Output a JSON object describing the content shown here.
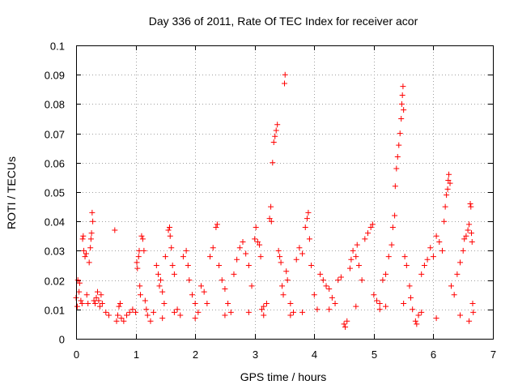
{
  "chart_data": {
    "type": "scatter",
    "title": "Day 336 of 2011, Rate Of TEC Index for receiver acor",
    "xlabel": "GPS time / hours",
    "ylabel": "ROTI / TECUs",
    "xlim": [
      0,
      7
    ],
    "ylim": [
      0,
      0.1
    ],
    "x_ticks": [
      "0",
      "1",
      "2",
      "3",
      "4",
      "5",
      "6",
      "7"
    ],
    "y_ticks": [
      "0",
      "0.01",
      "0.02",
      "0.03",
      "0.04",
      "0.05",
      "0.06",
      "0.07",
      "0.08",
      "0.09",
      "0.1"
    ],
    "grid": true,
    "marker": "+",
    "color": "#ff0000",
    "series": [
      {
        "points": [
          [
            0.0,
            0.014
          ],
          [
            0.02,
            0.011
          ],
          [
            0.03,
            0.02
          ],
          [
            0.05,
            0.016
          ],
          [
            0.06,
            0.019
          ],
          [
            0.08,
            0.013
          ],
          [
            0.1,
            0.012
          ],
          [
            0.11,
            0.034
          ],
          [
            0.12,
            0.035
          ],
          [
            0.13,
            0.03
          ],
          [
            0.15,
            0.028
          ],
          [
            0.17,
            0.029
          ],
          [
            0.18,
            0.015
          ],
          [
            0.2,
            0.012
          ],
          [
            0.22,
            0.026
          ],
          [
            0.24,
            0.031
          ],
          [
            0.25,
            0.034
          ],
          [
            0.26,
            0.036
          ],
          [
            0.27,
            0.043
          ],
          [
            0.28,
            0.04
          ],
          [
            0.3,
            0.013
          ],
          [
            0.32,
            0.012
          ],
          [
            0.34,
            0.014
          ],
          [
            0.36,
            0.016
          ],
          [
            0.38,
            0.013
          ],
          [
            0.4,
            0.011
          ],
          [
            0.42,
            0.015
          ],
          [
            0.44,
            0.012
          ],
          [
            0.65,
            0.037
          ],
          [
            0.68,
            0.006
          ],
          [
            0.7,
            0.008
          ],
          [
            0.72,
            0.011
          ],
          [
            0.74,
            0.012
          ],
          [
            0.76,
            0.007
          ],
          [
            0.8,
            0.006
          ],
          [
            0.85,
            0.008
          ],
          [
            0.9,
            0.009
          ],
          [
            0.95,
            0.01
          ],
          [
            1.0,
            0.009
          ],
          [
            1.02,
            0.026
          ],
          [
            1.03,
            0.024
          ],
          [
            1.05,
            0.028
          ],
          [
            1.06,
            0.03
          ],
          [
            1.07,
            0.018
          ],
          [
            1.08,
            0.015
          ],
          [
            1.1,
            0.035
          ],
          [
            1.12,
            0.034
          ],
          [
            1.14,
            0.03
          ],
          [
            1.16,
            0.013
          ],
          [
            1.18,
            0.01
          ],
          [
            1.2,
            0.008
          ],
          [
            1.25,
            0.006
          ],
          [
            1.3,
            0.009
          ],
          [
            1.35,
            0.025
          ],
          [
            1.38,
            0.022
          ],
          [
            1.4,
            0.018
          ],
          [
            1.42,
            0.02
          ],
          [
            1.45,
            0.016
          ],
          [
            1.48,
            0.012
          ],
          [
            1.5,
            0.028
          ],
          [
            1.55,
            0.037
          ],
          [
            1.57,
            0.038
          ],
          [
            1.58,
            0.035
          ],
          [
            1.6,
            0.031
          ],
          [
            1.62,
            0.025
          ],
          [
            1.65,
            0.022
          ],
          [
            1.7,
            0.01
          ],
          [
            1.75,
            0.008
          ],
          [
            1.8,
            0.028
          ],
          [
            1.85,
            0.03
          ],
          [
            1.88,
            0.025
          ],
          [
            1.9,
            0.02
          ],
          [
            1.95,
            0.015
          ],
          [
            2.0,
            0.012
          ],
          [
            2.05,
            0.009
          ],
          [
            2.1,
            0.018
          ],
          [
            2.15,
            0.016
          ],
          [
            2.2,
            0.012
          ],
          [
            2.25,
            0.028
          ],
          [
            2.3,
            0.031
          ],
          [
            2.35,
            0.038
          ],
          [
            2.37,
            0.039
          ],
          [
            2.4,
            0.025
          ],
          [
            2.45,
            0.02
          ],
          [
            2.5,
            0.017
          ],
          [
            2.55,
            0.012
          ],
          [
            2.6,
            0.009
          ],
          [
            2.65,
            0.022
          ],
          [
            2.7,
            0.027
          ],
          [
            2.75,
            0.031
          ],
          [
            2.8,
            0.033
          ],
          [
            2.85,
            0.029
          ],
          [
            2.9,
            0.025
          ],
          [
            2.95,
            0.018
          ],
          [
            3.0,
            0.034
          ],
          [
            3.02,
            0.038
          ],
          [
            3.05,
            0.033
          ],
          [
            3.08,
            0.032
          ],
          [
            3.1,
            0.028
          ],
          [
            3.12,
            0.01
          ],
          [
            3.15,
            0.008
          ],
          [
            3.2,
            0.012
          ],
          [
            3.25,
            0.041
          ],
          [
            3.27,
            0.045
          ],
          [
            3.28,
            0.04
          ],
          [
            3.3,
            0.06
          ],
          [
            3.32,
            0.067
          ],
          [
            3.34,
            0.069
          ],
          [
            3.36,
            0.071
          ],
          [
            3.38,
            0.073
          ],
          [
            3.4,
            0.03
          ],
          [
            3.42,
            0.028
          ],
          [
            3.44,
            0.026
          ],
          [
            3.46,
            0.018
          ],
          [
            3.48,
            0.015
          ],
          [
            3.5,
            0.087
          ],
          [
            3.51,
            0.09
          ],
          [
            3.53,
            0.023
          ],
          [
            3.55,
            0.02
          ],
          [
            3.6,
            0.012
          ],
          [
            3.65,
            0.009
          ],
          [
            3.7,
            0.027
          ],
          [
            3.75,
            0.031
          ],
          [
            3.8,
            0.029
          ],
          [
            3.85,
            0.038
          ],
          [
            3.88,
            0.041
          ],
          [
            3.9,
            0.043
          ],
          [
            3.92,
            0.034
          ],
          [
            3.95,
            0.025
          ],
          [
            4.0,
            0.015
          ],
          [
            4.05,
            0.01
          ],
          [
            4.1,
            0.022
          ],
          [
            4.15,
            0.02
          ],
          [
            4.2,
            0.018
          ],
          [
            4.25,
            0.017
          ],
          [
            4.3,
            0.014
          ],
          [
            4.35,
            0.012
          ],
          [
            4.4,
            0.02
          ],
          [
            4.45,
            0.021
          ],
          [
            4.5,
            0.005
          ],
          [
            4.52,
            0.004
          ],
          [
            4.55,
            0.006
          ],
          [
            4.6,
            0.024
          ],
          [
            4.62,
            0.027
          ],
          [
            4.65,
            0.03
          ],
          [
            4.7,
            0.028
          ],
          [
            4.72,
            0.032
          ],
          [
            4.75,
            0.025
          ],
          [
            4.8,
            0.02
          ],
          [
            4.85,
            0.034
          ],
          [
            4.9,
            0.036
          ],
          [
            4.95,
            0.038
          ],
          [
            4.98,
            0.039
          ],
          [
            5.0,
            0.015
          ],
          [
            5.05,
            0.013
          ],
          [
            5.1,
            0.01
          ],
          [
            5.15,
            0.02
          ],
          [
            5.2,
            0.022
          ],
          [
            5.25,
            0.028
          ],
          [
            5.3,
            0.032
          ],
          [
            5.32,
            0.038
          ],
          [
            5.35,
            0.042
          ],
          [
            5.36,
            0.052
          ],
          [
            5.38,
            0.058
          ],
          [
            5.4,
            0.062
          ],
          [
            5.42,
            0.066
          ],
          [
            5.44,
            0.07
          ],
          [
            5.46,
            0.075
          ],
          [
            5.47,
            0.08
          ],
          [
            5.48,
            0.083
          ],
          [
            5.49,
            0.086
          ],
          [
            5.5,
            0.078
          ],
          [
            5.52,
            0.028
          ],
          [
            5.55,
            0.025
          ],
          [
            5.6,
            0.018
          ],
          [
            5.62,
            0.014
          ],
          [
            5.65,
            0.01
          ],
          [
            5.7,
            0.006
          ],
          [
            5.72,
            0.005
          ],
          [
            5.75,
            0.008
          ],
          [
            5.8,
            0.022
          ],
          [
            5.85,
            0.025
          ],
          [
            5.9,
            0.027
          ],
          [
            5.95,
            0.031
          ],
          [
            6.0,
            0.028
          ],
          [
            6.05,
            0.035
          ],
          [
            6.1,
            0.033
          ],
          [
            6.15,
            0.03
          ],
          [
            6.18,
            0.04
          ],
          [
            6.2,
            0.045
          ],
          [
            6.22,
            0.049
          ],
          [
            6.24,
            0.051
          ],
          [
            6.25,
            0.054
          ],
          [
            6.26,
            0.056
          ],
          [
            6.28,
            0.053
          ],
          [
            6.3,
            0.018
          ],
          [
            6.35,
            0.015
          ],
          [
            6.4,
            0.022
          ],
          [
            6.45,
            0.026
          ],
          [
            6.5,
            0.03
          ],
          [
            6.52,
            0.034
          ],
          [
            6.55,
            0.035
          ],
          [
            6.58,
            0.037
          ],
          [
            6.6,
            0.039
          ],
          [
            6.62,
            0.046
          ],
          [
            6.63,
            0.045
          ],
          [
            6.64,
            0.036
          ],
          [
            6.65,
            0.033
          ],
          [
            6.66,
            0.012
          ],
          [
            6.67,
            0.009
          ],
          [
            0.5,
            0.009
          ],
          [
            0.55,
            0.008
          ],
          [
            1.45,
            0.007
          ],
          [
            1.65,
            0.009
          ],
          [
            2.0,
            0.007
          ],
          [
            2.5,
            0.008
          ],
          [
            2.9,
            0.009
          ],
          [
            3.15,
            0.011
          ],
          [
            3.6,
            0.008
          ],
          [
            3.8,
            0.009
          ],
          [
            4.25,
            0.01
          ],
          [
            4.7,
            0.011
          ],
          [
            5.1,
            0.012
          ],
          [
            5.2,
            0.011
          ],
          [
            5.5,
            0.012
          ],
          [
            5.8,
            0.009
          ],
          [
            6.05,
            0.007
          ],
          [
            6.45,
            0.008
          ],
          [
            6.6,
            0.006
          ]
        ]
      }
    ]
  }
}
